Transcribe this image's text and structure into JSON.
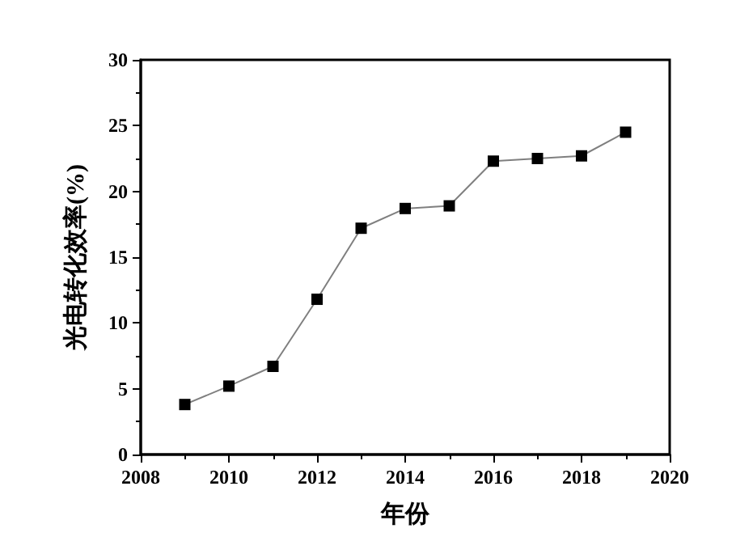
{
  "chart_data": {
    "type": "line",
    "xlabel": "年份",
    "ylabel": "光电转化效率(%)",
    "x": [
      2009,
      2010,
      2011,
      2012,
      2013,
      2014,
      2015,
      2016,
      2017,
      2018,
      2019
    ],
    "series": [
      {
        "color": "#000000",
        "values": [
          3.8,
          5.2,
          6.7,
          11.8,
          17.2,
          18.7,
          18.9,
          22.3,
          22.5,
          22.7,
          24.5
        ]
      }
    ],
    "xlim": [
      2008,
      2020
    ],
    "xticks": [
      2008,
      2010,
      2012,
      2014,
      2016,
      2018,
      2020
    ],
    "ylim": [
      0,
      30
    ],
    "yticks": [
      0,
      5,
      10,
      15,
      20,
      25,
      30
    ],
    "grid": false,
    "marker": "square",
    "line_style": "solid"
  }
}
